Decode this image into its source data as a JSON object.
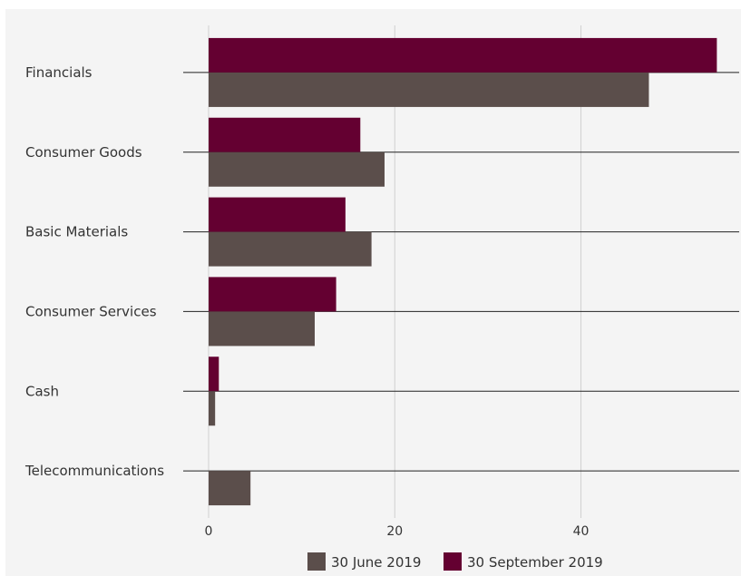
{
  "chart_data": {
    "type": "bar",
    "orientation": "horizontal",
    "title": "",
    "xlabel": "",
    "ylabel": "",
    "categories": [
      "Financials",
      "Consumer Goods",
      "Basic Materials",
      "Consumer Services",
      "Cash",
      "Telecommunications"
    ],
    "series": [
      {
        "name": "30 June 2019",
        "color": "#5b4e4b",
        "values": [
          47.3,
          18.9,
          17.5,
          11.4,
          0.7,
          4.5
        ]
      },
      {
        "name": "30 September 2019",
        "color": "#640031",
        "values": [
          54.6,
          16.3,
          14.7,
          13.7,
          1.1,
          0
        ]
      }
    ],
    "xlim": [
      0,
      57
    ],
    "xticks": [
      0,
      20,
      40
    ],
    "grid": true,
    "legend_position": "bottom"
  }
}
